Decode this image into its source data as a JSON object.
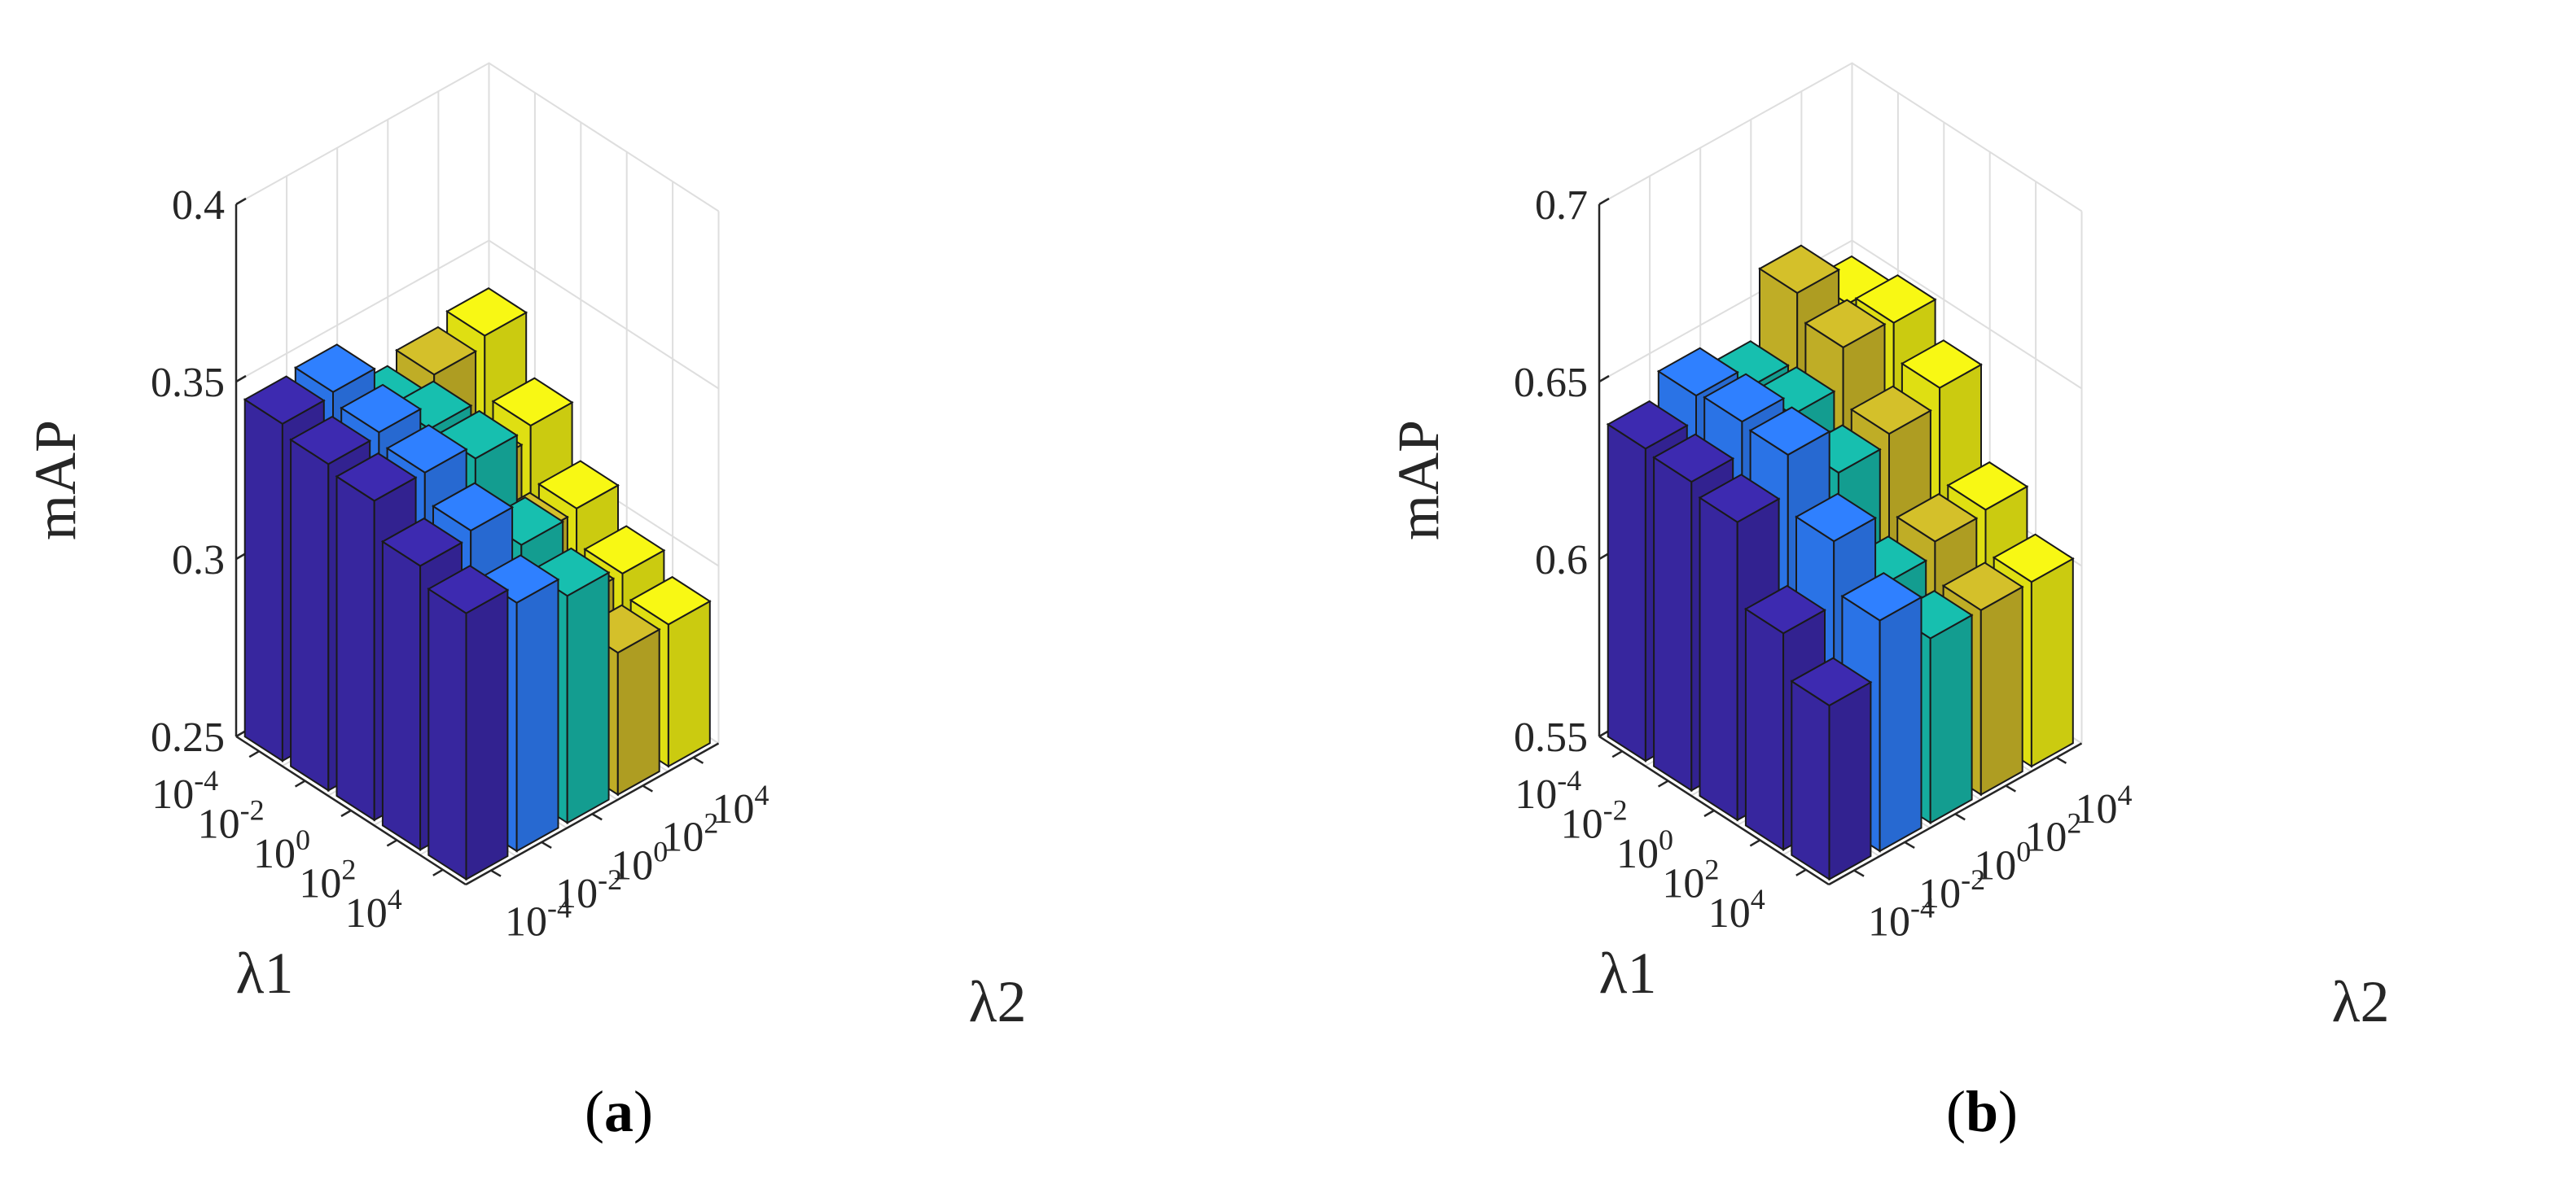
{
  "chart_data": [
    {
      "type": "bar3d",
      "caption_letter": "a",
      "zlabel": "mAP",
      "xlabel": "λ1",
      "ylabel": "λ2",
      "zlim": [
        0.25,
        0.4
      ],
      "zticks": [
        "0.25",
        "0.3",
        "0.35",
        "0.4"
      ],
      "zticks_values": [
        0.25,
        0.3,
        0.35,
        0.4
      ],
      "lambda1_ticks": [
        {
          "base": "10",
          "exp": "-4"
        },
        {
          "base": "10",
          "exp": "-2"
        },
        {
          "base": "10",
          "exp": "0"
        },
        {
          "base": "10",
          "exp": "2"
        },
        {
          "base": "10",
          "exp": "4"
        }
      ],
      "lambda2_ticks": [
        {
          "base": "10",
          "exp": "-4"
        },
        {
          "base": "10",
          "exp": "-2"
        },
        {
          "base": "10",
          "exp": "0"
        },
        {
          "base": "10",
          "exp": "2"
        },
        {
          "base": "10",
          "exp": "4"
        }
      ],
      "series_colors": [
        "#3d2ab0",
        "#2f80ff",
        "#17bfaf",
        "#d4c02a",
        "#f8f814"
      ],
      "values": [
        [
          0.345,
          0.346,
          0.332,
          0.335,
          0.338
        ],
        [
          0.342,
          0.343,
          0.336,
          0.317,
          0.321
        ],
        [
          0.34,
          0.34,
          0.336,
          0.305,
          0.306
        ],
        [
          0.33,
          0.332,
          0.32,
          0.296,
          0.296
        ],
        [
          0.325,
          0.32,
          0.314,
          0.29,
          0.29
        ]
      ]
    },
    {
      "type": "bar3d",
      "caption_letter": "b",
      "zlabel": "mAP",
      "xlabel": "λ1",
      "ylabel": "λ2",
      "zlim": [
        0.55,
        0.7
      ],
      "zticks": [
        "0.55",
        "0.6",
        "0.65",
        "0.7"
      ],
      "zticks_values": [
        0.55,
        0.6,
        0.65,
        0.7
      ],
      "lambda1_ticks": [
        {
          "base": "10",
          "exp": "-4"
        },
        {
          "base": "10",
          "exp": "-2"
        },
        {
          "base": "10",
          "exp": "0"
        },
        {
          "base": "10",
          "exp": "2"
        },
        {
          "base": "10",
          "exp": "4"
        }
      ],
      "lambda2_ticks": [
        {
          "base": "10",
          "exp": "-4"
        },
        {
          "base": "10",
          "exp": "-2"
        },
        {
          "base": "10",
          "exp": "0"
        },
        {
          "base": "10",
          "exp": "2"
        },
        {
          "base": "10",
          "exp": "4"
        }
      ],
      "series_colors": [
        "#3d2ab0",
        "#2f80ff",
        "#17bfaf",
        "#d4c02a",
        "#f8f814"
      ],
      "values": [
        [
          0.638,
          0.645,
          0.639,
          0.658,
          0.647
        ],
        [
          0.637,
          0.646,
          0.64,
          0.651,
          0.65
        ],
        [
          0.634,
          0.645,
          0.632,
          0.635,
          0.64
        ],
        [
          0.611,
          0.629,
          0.609,
          0.613,
          0.614
        ],
        [
          0.599,
          0.615,
          0.602,
          0.602,
          0.602
        ]
      ]
    }
  ]
}
